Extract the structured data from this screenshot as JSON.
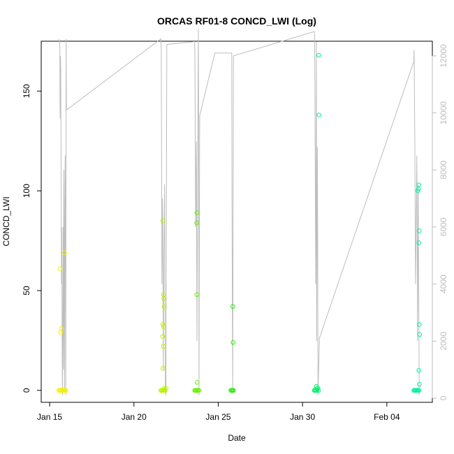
{
  "chart_data": {
    "type": "scatter",
    "title": "ORCAS RF01-8 CONCD_LWI (Log)",
    "xlabel": "Date",
    "ylabel": "CONCD_LWI",
    "x_ticks": [
      "Jan 15",
      "Jan 20",
      "Jan 25",
      "Jan 30",
      "Feb 04"
    ],
    "x_tick_days": [
      15,
      20,
      25,
      30,
      35
    ],
    "xlim_days": [
      14.5,
      37.7
    ],
    "ylim": [
      -6,
      175
    ],
    "y_ticks": [
      0,
      50,
      100,
      150
    ],
    "y2_ticks": [
      0,
      2000,
      4000,
      6000,
      8000,
      10000,
      12000
    ],
    "y2_range": [
      -6,
      175
    ],
    "y2lim": [
      0,
      12660
    ],
    "grid": false,
    "colors": {
      "trace": "#bdbdbd",
      "rf01": "#f2f200",
      "rf02": "#b8f200",
      "rf03": "#66f000",
      "rf04": "#1ef000",
      "rf05": "#00f06a",
      "rf06": "#00f0b4",
      "rf07": "#00f09c"
    },
    "altitude_trace": [
      [
        15.55,
        12600
      ],
      [
        15.6,
        12400
      ],
      [
        15.62,
        9800
      ],
      [
        15.64,
        12000
      ],
      [
        15.66,
        11500
      ],
      [
        15.68,
        8000
      ],
      [
        15.7,
        4000
      ],
      [
        15.72,
        6000
      ],
      [
        15.74,
        2000
      ],
      [
        15.76,
        100
      ],
      [
        15.78,
        3000
      ],
      [
        15.8,
        6000
      ],
      [
        15.82,
        1000
      ],
      [
        15.84,
        8000
      ],
      [
        15.86,
        5000
      ],
      [
        15.88,
        200
      ],
      [
        15.9,
        7000
      ],
      [
        15.92,
        8500
      ],
      [
        15.94,
        3000
      ],
      [
        15.96,
        100
      ],
      [
        15.98,
        12600
      ],
      [
        16.0,
        10100
      ],
      [
        21.6,
        12600
      ],
      [
        21.62,
        12200
      ],
      [
        21.64,
        9000
      ],
      [
        21.66,
        4000
      ],
      [
        21.7,
        7000
      ],
      [
        21.74,
        1000
      ],
      [
        21.78,
        5000
      ],
      [
        21.82,
        7500
      ],
      [
        21.86,
        300
      ],
      [
        21.9,
        100
      ],
      [
        21.95,
        12400
      ],
      [
        23.6,
        12500
      ],
      [
        23.62,
        12000
      ],
      [
        23.66,
        6000
      ],
      [
        23.7,
        9000
      ],
      [
        23.74,
        2000
      ],
      [
        23.78,
        8000
      ],
      [
        23.82,
        12950
      ],
      [
        23.84,
        10000
      ],
      [
        23.86,
        100
      ],
      [
        23.9,
        9900
      ],
      [
        24.8,
        12100
      ],
      [
        25.8,
        12100
      ],
      [
        25.82,
        7000
      ],
      [
        25.84,
        3000
      ],
      [
        25.86,
        200
      ],
      [
        25.9,
        12000
      ],
      [
        30.7,
        12850
      ],
      [
        30.72,
        12600
      ],
      [
        30.75,
        9000
      ],
      [
        30.78,
        4000
      ],
      [
        30.82,
        12500
      ],
      [
        30.84,
        2000
      ],
      [
        30.88,
        8800
      ],
      [
        30.9,
        5000
      ],
      [
        30.92,
        100
      ],
      [
        31.0,
        2100
      ],
      [
        36.6,
        11800
      ],
      [
        36.62,
        12200
      ],
      [
        36.66,
        9000
      ],
      [
        36.7,
        4000
      ],
      [
        36.74,
        6000
      ],
      [
        36.78,
        8500
      ],
      [
        36.82,
        2000
      ],
      [
        36.86,
        7500
      ],
      [
        36.9,
        3000
      ],
      [
        36.92,
        100
      ]
    ],
    "flights": [
      {
        "color": "rf01",
        "points": [
          [
            15.55,
            0
          ],
          [
            15.6,
            0
          ],
          [
            15.65,
            0
          ],
          [
            15.7,
            0
          ],
          [
            15.75,
            0
          ],
          [
            15.8,
            0
          ],
          [
            15.85,
            0
          ],
          [
            15.9,
            0
          ],
          [
            15.95,
            0
          ],
          [
            15.62,
            61
          ],
          [
            15.66,
            29
          ],
          [
            15.7,
            31
          ],
          [
            15.88,
            69
          ]
        ]
      },
      {
        "color": "rf02",
        "points": [
          [
            21.6,
            0
          ],
          [
            21.65,
            0
          ],
          [
            21.7,
            0
          ],
          [
            21.75,
            0
          ],
          [
            21.8,
            0
          ],
          [
            21.85,
            0
          ],
          [
            21.9,
            1
          ],
          [
            21.72,
            85
          ],
          [
            21.75,
            48
          ],
          [
            21.77,
            46
          ],
          [
            21.79,
            42
          ],
          [
            21.72,
            33
          ],
          [
            21.75,
            32
          ],
          [
            21.7,
            27
          ],
          [
            21.74,
            22
          ],
          [
            21.72,
            11
          ],
          [
            21.8,
            1
          ]
        ]
      },
      {
        "color": "rf03",
        "points": [
          [
            23.6,
            0
          ],
          [
            23.65,
            0
          ],
          [
            23.7,
            0
          ],
          [
            23.75,
            0
          ],
          [
            23.8,
            0
          ],
          [
            23.85,
            0
          ],
          [
            23.74,
            89
          ],
          [
            23.72,
            84
          ],
          [
            23.73,
            48
          ],
          [
            23.75,
            4
          ]
        ]
      },
      {
        "color": "rf04",
        "points": [
          [
            25.75,
            0
          ],
          [
            25.8,
            0
          ],
          [
            25.85,
            0
          ],
          [
            25.9,
            0
          ],
          [
            25.86,
            42
          ],
          [
            25.88,
            24
          ]
        ]
      },
      {
        "color": "rf05",
        "points": [
          [
            30.7,
            0
          ],
          [
            30.75,
            0
          ],
          [
            30.8,
            0
          ],
          [
            30.85,
            0
          ],
          [
            30.9,
            1
          ],
          [
            30.95,
            0
          ],
          [
            30.82,
            2
          ],
          [
            30.88,
            1
          ]
        ]
      },
      {
        "color": "rf06",
        "points": [
          [
            30.96,
            168
          ],
          [
            30.98,
            138
          ]
        ]
      },
      {
        "color": "rf07",
        "points": [
          [
            36.6,
            0
          ],
          [
            36.65,
            0
          ],
          [
            36.7,
            0
          ],
          [
            36.75,
            0
          ],
          [
            36.8,
            0
          ],
          [
            36.85,
            0
          ],
          [
            36.9,
            0
          ],
          [
            36.9,
            103
          ],
          [
            36.84,
            100
          ],
          [
            36.88,
            101
          ],
          [
            36.92,
            80
          ],
          [
            36.9,
            74
          ],
          [
            36.92,
            33
          ],
          [
            36.94,
            28
          ],
          [
            36.9,
            10
          ],
          [
            36.93,
            3
          ]
        ]
      }
    ]
  }
}
